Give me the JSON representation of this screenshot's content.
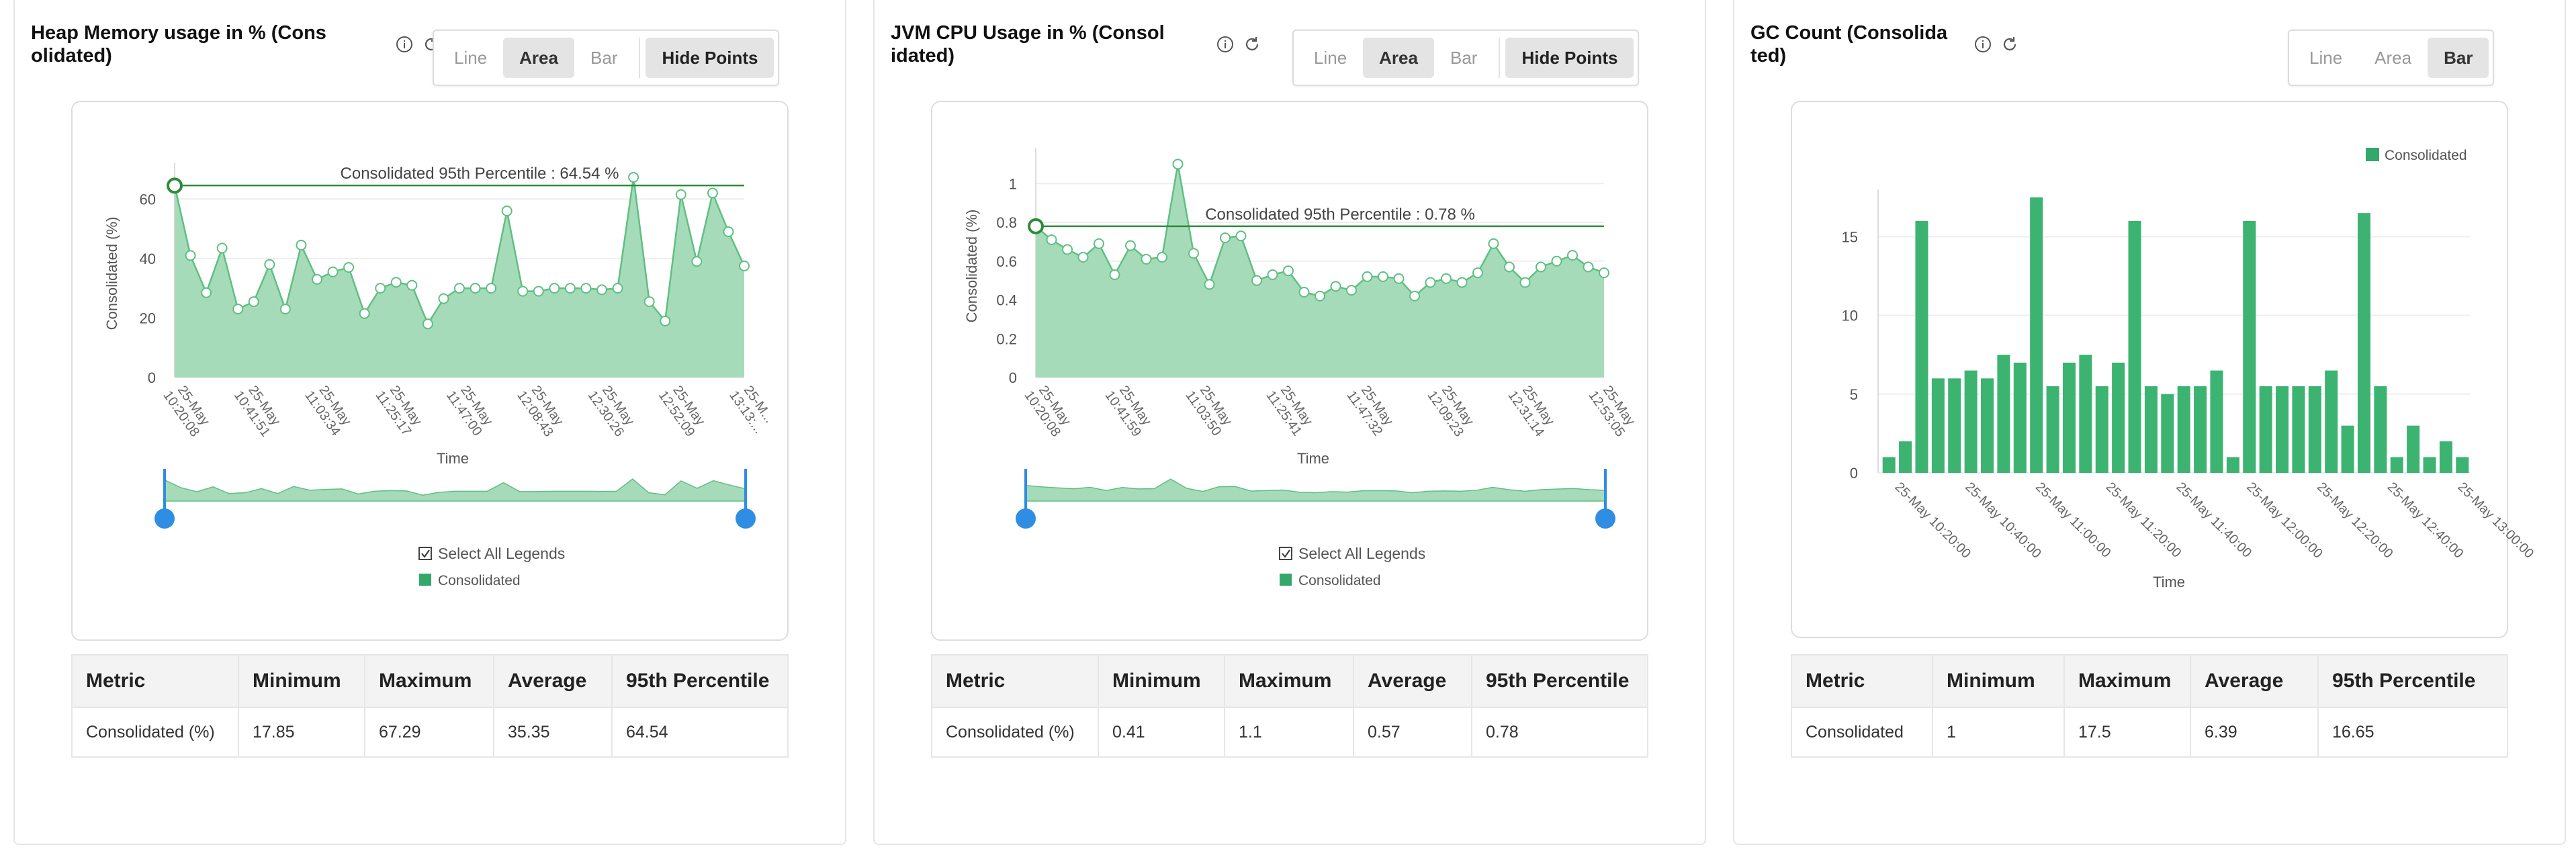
{
  "panels": [
    {
      "title": "Heap Memory usage in % (Cons olidated)",
      "title_lines": [
        "Heap Memory usage in % (Cons",
        "olidated)"
      ],
      "mode_options": [
        "Line",
        "Area",
        "Bar"
      ],
      "active_mode": "Area",
      "hide_points_label": "Hide Points",
      "select_all_label": "Select All Legends",
      "legend_label": "Consolidated",
      "stats": {
        "headers": [
          "Metric",
          "Minimum",
          "Maximum",
          "Average",
          "95th Percentile"
        ],
        "row": [
          "Consolidated (%)",
          "17.85",
          "67.29",
          "35.35",
          "64.54"
        ]
      }
    },
    {
      "title": "JVM CPU Usage in % (Consol idated)",
      "title_lines": [
        "JVM CPU Usage in % (Consol",
        "idated)"
      ],
      "mode_options": [
        "Line",
        "Area",
        "Bar"
      ],
      "active_mode": "Area",
      "hide_points_label": "Hide Points",
      "select_all_label": "Select All Legends",
      "legend_label": "Consolidated",
      "stats": {
        "headers": [
          "Metric",
          "Minimum",
          "Maximum",
          "Average",
          "95th Percentile"
        ],
        "row": [
          "Consolidated (%)",
          "0.41",
          "1.1",
          "0.57",
          "0.78"
        ]
      }
    },
    {
      "title": "GC Count (Consolida ted)",
      "title_lines": [
        "GC Count (Consolida",
        "ted)"
      ],
      "mode_options": [
        "Line",
        "Area",
        "Bar"
      ],
      "active_mode": "Bar",
      "legend_label": "Consolidated",
      "stats": {
        "headers": [
          "Metric",
          "Minimum",
          "Maximum",
          "Average",
          "95th Percentile"
        ],
        "row": [
          "Consolidated",
          "1",
          "17.5",
          "6.39",
          "16.65"
        ]
      }
    }
  ],
  "colors": {
    "area_fill": "#a6dbb9",
    "area_line": "#5fbf83",
    "bar_fill": "#3cb371",
    "percentile_line": "#2e8b3a",
    "handle": "#2f8de4",
    "legend_swatch": "#33a86a"
  },
  "chart_data": [
    {
      "type": "area",
      "ylabel": "Consolidated (%)",
      "xlabel": "Time",
      "ylim": [
        0,
        70
      ],
      "yticks": [
        0,
        20,
        40,
        60
      ],
      "percentile": {
        "label": "Consolidated 95th Percentile : 64.54 %",
        "value": 64.54
      },
      "x_tick_labels": [
        [
          "25-May",
          "10:20:08"
        ],
        [
          "25-May",
          "10:41:51"
        ],
        [
          "25-May",
          "11:03:34"
        ],
        [
          "25-May",
          "11:25:17"
        ],
        [
          "25-May",
          "11:47:00"
        ],
        [
          "25-May",
          "12:08:43"
        ],
        [
          "25-May",
          "12:30:26"
        ],
        [
          "25-May",
          "12:52:09"
        ],
        [
          "25-M...",
          "13:13:..."
        ]
      ],
      "series": [
        {
          "name": "Consolidated",
          "values": [
            64.5,
            41,
            28.5,
            43.5,
            23,
            25.5,
            38,
            23,
            44.5,
            33,
            35.5,
            37,
            21.5,
            30,
            32,
            31,
            18,
            26.5,
            30,
            30,
            30,
            56,
            29,
            29,
            30,
            30,
            30,
            29.5,
            30,
            67.3,
            25.5,
            19,
            61.5,
            39,
            62,
            49,
            37.5
          ]
        }
      ]
    },
    {
      "type": "area",
      "ylabel": "Consolidated (%)",
      "xlabel": "Time",
      "ylim": [
        0,
        1.15
      ],
      "yticks": [
        0,
        0.2,
        0.4,
        0.6,
        0.8,
        1
      ],
      "percentile": {
        "label": "Consolidated 95th Percentile : 0.78 %",
        "value": 0.78
      },
      "x_tick_labels": [
        [
          "25-May",
          "10:20:08"
        ],
        [
          "25-May",
          "10:41:59"
        ],
        [
          "25-May",
          "11:03:50"
        ],
        [
          "25-May",
          "11:25:41"
        ],
        [
          "25-May",
          "11:47:32"
        ],
        [
          "25-May",
          "12:09:23"
        ],
        [
          "25-May",
          "12:31:14"
        ],
        [
          "25-May",
          "12:53:05"
        ]
      ],
      "series": [
        {
          "name": "Consolidated",
          "values": [
            0.78,
            0.71,
            0.66,
            0.62,
            0.69,
            0.53,
            0.68,
            0.61,
            0.62,
            1.1,
            0.64,
            0.48,
            0.72,
            0.73,
            0.5,
            0.53,
            0.55,
            0.44,
            0.42,
            0.47,
            0.45,
            0.52,
            0.52,
            0.51,
            0.42,
            0.49,
            0.51,
            0.49,
            0.54,
            0.69,
            0.57,
            0.49,
            0.57,
            0.6,
            0.63,
            0.57,
            0.54
          ]
        }
      ]
    },
    {
      "type": "bar",
      "xlabel": "Time",
      "ylim": [
        0,
        18
      ],
      "yticks": [
        0,
        5,
        10,
        15
      ],
      "legend": "top-right",
      "x_tick_labels": [
        "25-May 10:20:00",
        "25-May 10:40:00",
        "25-May 11:00:00",
        "25-May 11:20:00",
        "25-May 11:40:00",
        "25-May 12:00:00",
        "25-May 12:20:00",
        "25-May 12:40:00",
        "25-May 13:00:00"
      ],
      "series": [
        {
          "name": "Consolidated",
          "values": [
            1,
            2,
            16,
            6,
            6,
            6.5,
            6,
            7.5,
            7,
            17.5,
            5.5,
            7,
            7.5,
            5.5,
            7,
            16,
            5.5,
            5,
            5.5,
            5.5,
            6.5,
            1,
            16,
            5.5,
            5.5,
            5.5,
            5.5,
            6.5,
            3,
            16.5,
            5.5,
            1,
            3,
            1,
            2,
            1
          ]
        }
      ]
    }
  ]
}
